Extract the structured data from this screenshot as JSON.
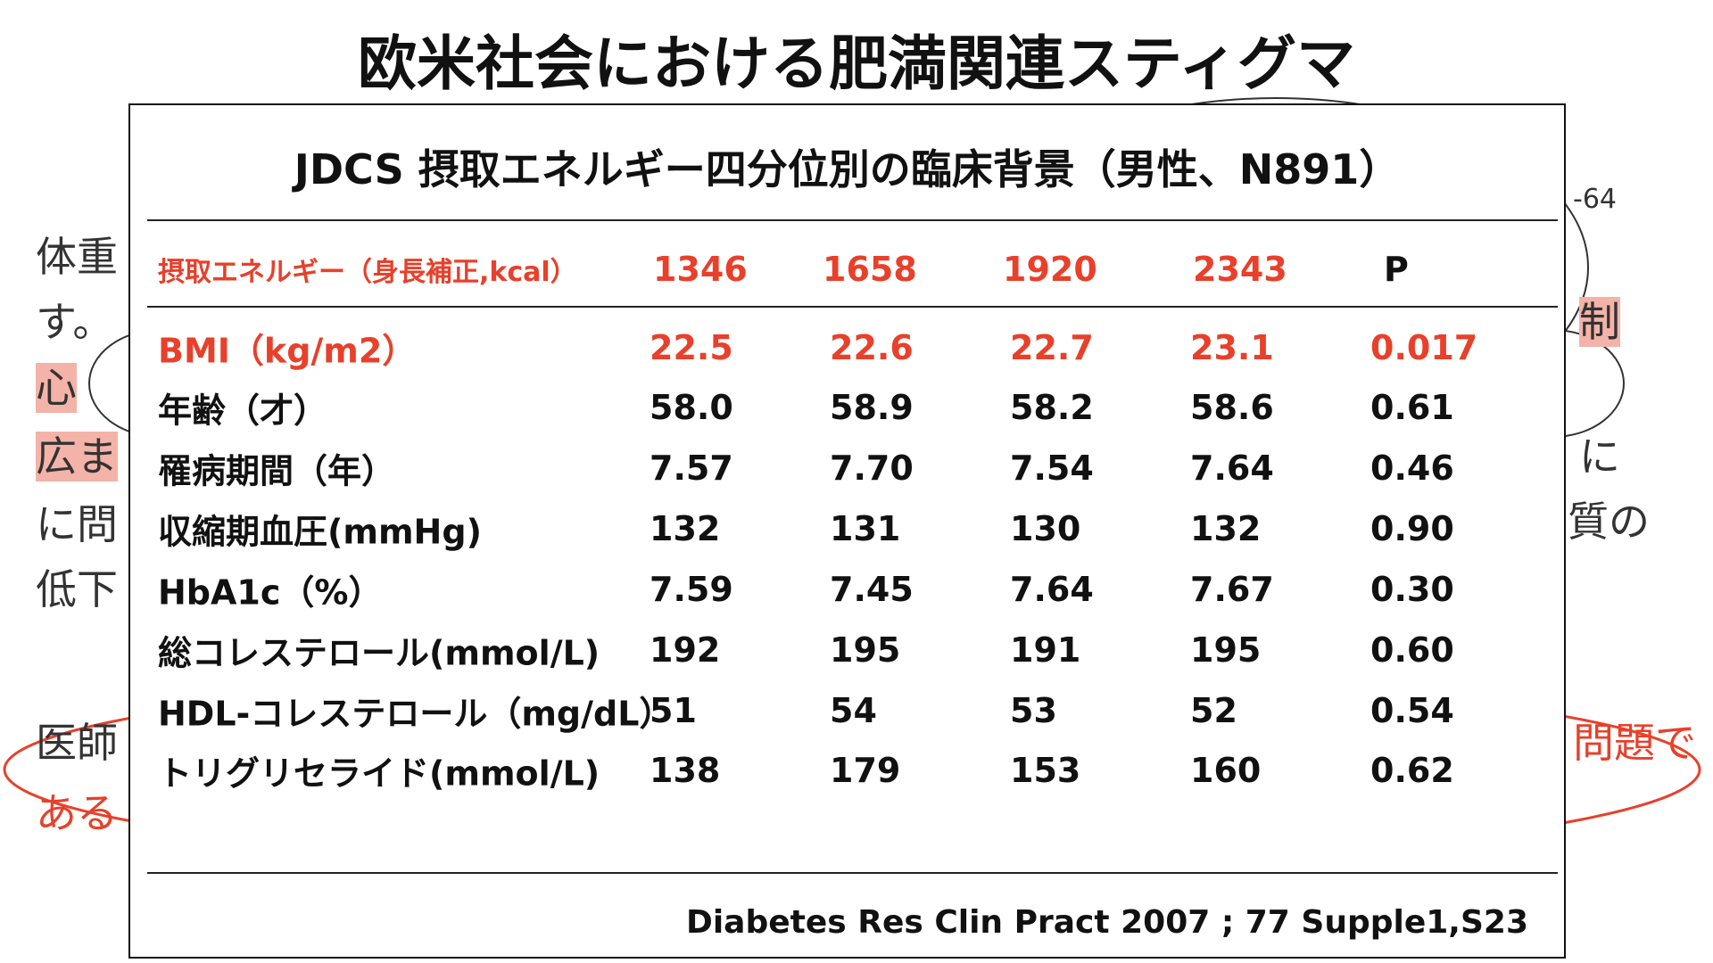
{
  "slide": {
    "title": "欧米社会における肥満関連スティグマ",
    "background_text": {
      "left": [
        "体重",
        "す。",
        "心",
        "広ま",
        "に問",
        "低下",
        "医師",
        "ある"
      ],
      "right": [
        "-64",
        "制",
        "に",
        "質の",
        "問題で"
      ]
    }
  },
  "table_panel": {
    "title": "JDCS  摂取エネルギー四分位別の臨床背景（男性、N891）",
    "header": [
      "摂取エネルギー（身長補正,kcal）",
      "1346",
      "1658",
      "1920",
      "2343",
      "P"
    ],
    "rows": [
      [
        "BMI（kg/m2）",
        "22.5",
        "22.6",
        "22.7",
        "23.1",
        "0.017"
      ],
      [
        "年齢（才）",
        "58.0",
        "58.9",
        "58.2",
        "58.6",
        "0.61"
      ],
      [
        "罹病期間（年）",
        "7.57",
        "7.70",
        "7.54",
        "7.64",
        "0.46"
      ],
      [
        "収縮期血圧(mmHg)",
        "132",
        "131",
        "130",
        "132",
        "0.90"
      ],
      [
        "HbA1c（%）",
        "7.59",
        "7.45",
        "7.64",
        "7.67",
        "0.30"
      ],
      [
        "総コレステロール(mmol/L)",
        "192",
        "195",
        "191",
        "195",
        "0.60"
      ],
      [
        "HDL-コレステロール（mg/dL）",
        "51",
        "54",
        "53",
        "52",
        "0.54"
      ],
      [
        "トリグリセライド(mmol/L)",
        "138",
        "179",
        "153",
        "160",
        "0.62"
      ]
    ],
    "citation": "Diabetes Res Clin Pract 2007 ; 77 Supple1,S23"
  }
}
